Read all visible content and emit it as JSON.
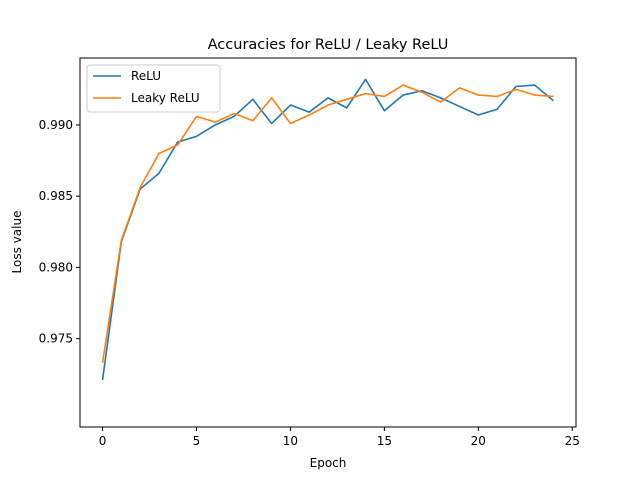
{
  "chart_data": {
    "type": "line",
    "title": "Accuracies for ReLU / Leaky ReLU",
    "xlabel": "Epoch",
    "ylabel": "Loss value",
    "xlim": [
      -1.2,
      25.2
    ],
    "ylim": [
      0.9688,
      0.9947
    ],
    "xticks": [
      0,
      5,
      10,
      15,
      20,
      25
    ],
    "yticks": [
      0.975,
      0.98,
      0.985,
      0.99
    ],
    "ytick_format": 3,
    "grid": false,
    "legend_position": "upper-left",
    "x": [
      0,
      1,
      2,
      3,
      4,
      5,
      6,
      7,
      8,
      9,
      10,
      11,
      12,
      13,
      14,
      15,
      16,
      17,
      18,
      19,
      20,
      21,
      22,
      23,
      24
    ],
    "series": [
      {
        "name": "ReLU",
        "color": "#1f77b4",
        "values": [
          0.9721,
          0.9818,
          0.9855,
          0.9866,
          0.9888,
          0.9892,
          0.99,
          0.9906,
          0.9918,
          0.9901,
          0.9914,
          0.9909,
          0.9919,
          0.9912,
          0.9932,
          0.991,
          0.9921,
          0.9924,
          0.9919,
          0.9913,
          0.9907,
          0.9911,
          0.9927,
          0.9928,
          0.9917
        ]
      },
      {
        "name": "Leaky ReLU",
        "color": "#ff7f0e",
        "values": [
          0.9733,
          0.9819,
          0.9856,
          0.988,
          0.9886,
          0.9906,
          0.9902,
          0.9908,
          0.9903,
          0.9919,
          0.9901,
          0.9907,
          0.9914,
          0.9918,
          0.9922,
          0.992,
          0.9928,
          0.9923,
          0.9916,
          0.9926,
          0.9921,
          0.992,
          0.9925,
          0.9921,
          0.992
        ]
      }
    ]
  }
}
